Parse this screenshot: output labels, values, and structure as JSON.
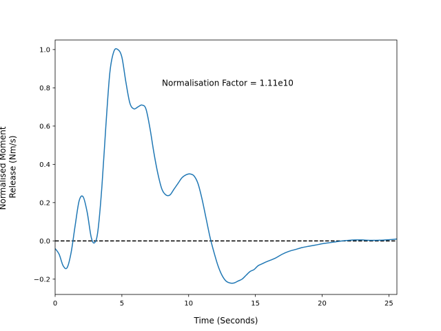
{
  "chart_data": {
    "type": "line",
    "title": "",
    "xlabel": "Time (Seconds)",
    "ylabel_lines": [
      "Normalised Moment",
      "Release (Nm/s)"
    ],
    "xlim": [
      0,
      25.6
    ],
    "ylim": [
      -0.28,
      1.05
    ],
    "xticks": [
      0,
      5,
      10,
      15,
      20,
      25
    ],
    "yticks": [
      -0.2,
      0.0,
      0.2,
      0.4,
      0.6,
      0.8,
      1.0
    ],
    "ytick_labels": [
      "−0.2",
      "0.0",
      "0.2",
      "0.4",
      "0.6",
      "0.8",
      "1.0"
    ],
    "grid": false,
    "annotation": {
      "text": "Normalisation Factor = 1.11e10",
      "x": 8.0,
      "y": 0.81
    },
    "reference_line": {
      "y": 0.0,
      "style": "dashed",
      "color": "#000000"
    },
    "series": [
      {
        "color": "#1f77b4",
        "x": [
          0.0,
          0.3,
          0.6,
          0.9,
          1.2,
          1.5,
          1.8,
          2.1,
          2.4,
          2.7,
          2.95,
          3.2,
          3.5,
          3.8,
          4.1,
          4.4,
          4.7,
          5.0,
          5.3,
          5.6,
          5.9,
          6.2,
          6.5,
          6.8,
          7.1,
          7.4,
          7.7,
          8.0,
          8.3,
          8.6,
          8.9,
          9.2,
          9.5,
          9.8,
          10.1,
          10.4,
          10.7,
          11.0,
          11.3,
          11.6,
          11.9,
          12.2,
          12.5,
          12.8,
          13.1,
          13.4,
          13.7,
          14.0,
          14.3,
          14.6,
          14.9,
          15.2,
          15.5,
          15.8,
          16.5,
          17.0,
          17.5,
          18.0,
          18.5,
          19.0,
          19.5,
          20.0,
          20.5,
          21.0,
          21.5,
          22.0,
          22.5,
          23.0,
          23.5,
          24.0,
          24.5,
          25.0,
          25.6
        ],
        "y": [
          -0.04,
          -0.07,
          -0.13,
          -0.14,
          -0.06,
          0.08,
          0.21,
          0.23,
          0.15,
          0.02,
          -0.01,
          0.05,
          0.28,
          0.6,
          0.88,
          0.99,
          1.0,
          0.96,
          0.83,
          0.72,
          0.69,
          0.7,
          0.71,
          0.69,
          0.59,
          0.46,
          0.35,
          0.27,
          0.24,
          0.24,
          0.27,
          0.3,
          0.33,
          0.345,
          0.35,
          0.34,
          0.3,
          0.22,
          0.12,
          0.02,
          -0.06,
          -0.13,
          -0.18,
          -0.21,
          -0.22,
          -0.22,
          -0.21,
          -0.2,
          -0.18,
          -0.16,
          -0.15,
          -0.13,
          -0.12,
          -0.11,
          -0.09,
          -0.07,
          -0.055,
          -0.045,
          -0.035,
          -0.028,
          -0.022,
          -0.015,
          -0.01,
          -0.005,
          0.0,
          0.003,
          0.005,
          0.005,
          0.003,
          0.003,
          0.004,
          0.006,
          0.01
        ]
      }
    ]
  }
}
